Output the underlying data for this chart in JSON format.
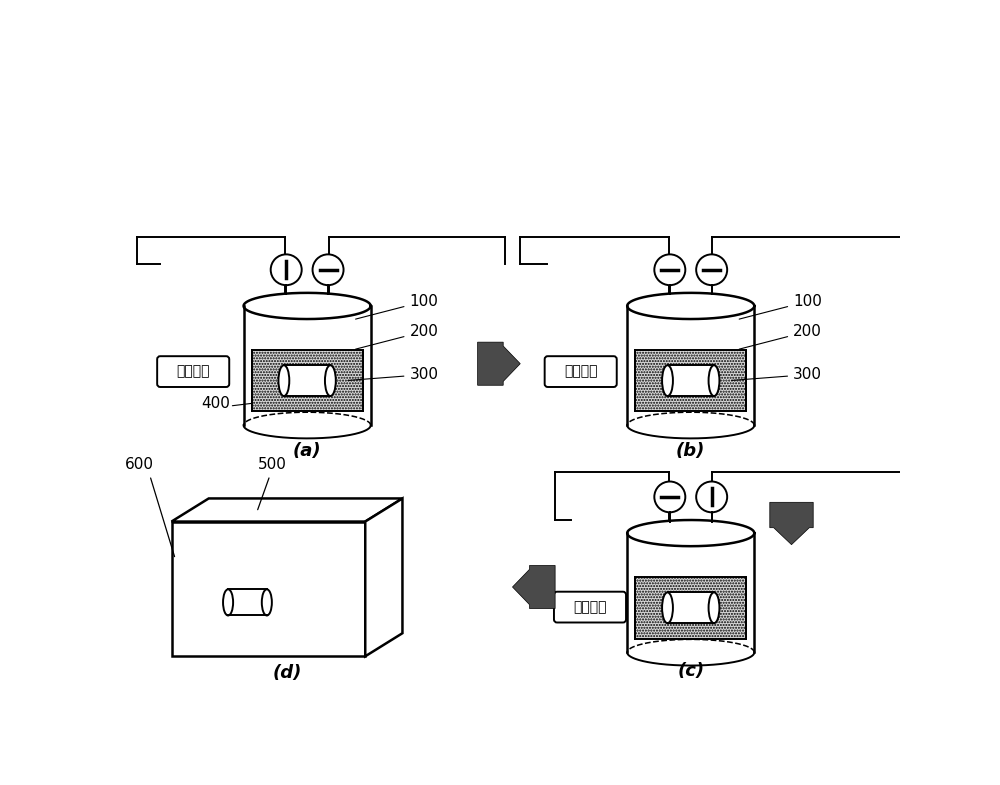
{
  "bg_color": "#ffffff",
  "line_color": "#000000",
  "label_a": "(a)",
  "label_b": "(b)",
  "label_c": "(c)",
  "label_d": "(d)",
  "pump_on": "抽气泵开",
  "pump_off_b": "抽气泵关",
  "pump_off_c": "抽气泵关",
  "n100": "100",
  "n200": "200",
  "n300": "300",
  "n400": "400",
  "n500": "500",
  "n600": "600",
  "arrow_color": "#4a4a4a",
  "font_size_label": 13,
  "font_size_number": 11,
  "font_size_pump": 10
}
